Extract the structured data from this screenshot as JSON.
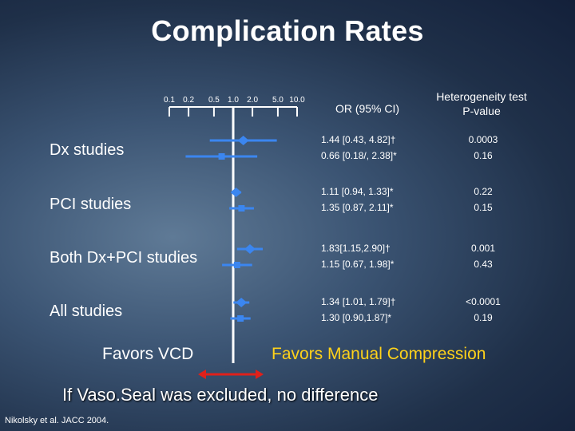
{
  "title": "Complication Rates",
  "headers": {
    "or": "OR (95% CI)",
    "p_line1": "Heterogeneity test",
    "p_line2": "P-value"
  },
  "favors_left": "Favors VCD",
  "favors_right": "Favors Manual Compression",
  "note": "If Vaso.Seal was excluded, no difference",
  "citation": "Nikolsky et al. JACC 2004.",
  "colors": {
    "marker": "#3b86f0",
    "ref_line": "#ffffff",
    "favors_right": "#ffd21a",
    "arrow": "#e0201a"
  },
  "chart_data": {
    "type": "forest",
    "x_scale": "log",
    "x_ticks": [
      0.1,
      0.2,
      0.5,
      1.0,
      2.0,
      5.0,
      10.0
    ],
    "x_tick_labels": [
      "0.1",
      "0.2",
      "0.5",
      "1.0",
      "2.0",
      "5.0",
      "10.0"
    ],
    "reference_line": 1.0,
    "groups": [
      {
        "label": "Dx studies",
        "rows": [
          {
            "marker": "diamond",
            "or": 1.44,
            "lo": 0.43,
            "hi": 4.82,
            "ci_text": "1.44 [0.43, 4.82]†",
            "p": "0.0003"
          },
          {
            "marker": "square",
            "or": 0.66,
            "lo": 0.18,
            "hi": 2.38,
            "ci_text": "0.66 [0.18/, 2.38]*",
            "p": "0.16"
          }
        ]
      },
      {
        "label": "PCI studies",
        "rows": [
          {
            "marker": "diamond",
            "or": 1.11,
            "lo": 0.94,
            "hi": 1.33,
            "ci_text": "1.11 [0.94, 1.33]*",
            "p": "0.22"
          },
          {
            "marker": "square",
            "or": 1.35,
            "lo": 0.87,
            "hi": 2.11,
            "ci_text": "1.35 [0.87, 2.11]*",
            "p": "0.15"
          }
        ]
      },
      {
        "label": "Both Dx+PCI studies",
        "rows": [
          {
            "marker": "diamond",
            "or": 1.83,
            "lo": 1.15,
            "hi": 2.9,
            "ci_text": "1.83[1.15,2.90]†",
            "p": "0.001"
          },
          {
            "marker": "square",
            "or": 1.15,
            "lo": 0.67,
            "hi": 1.98,
            "ci_text": "1.15 [0.67, 1.98]*",
            "p": "0.43"
          }
        ]
      },
      {
        "label": "All studies",
        "rows": [
          {
            "marker": "diamond",
            "or": 1.34,
            "lo": 1.01,
            "hi": 1.79,
            "ci_text": "1.34 [1.01, 1.79]†",
            "p": "<0.0001"
          },
          {
            "marker": "square",
            "or": 1.3,
            "lo": 0.9,
            "hi": 1.87,
            "ci_text": "1.30 [0.90,1.87]*",
            "p": "0.19"
          }
        ]
      }
    ]
  }
}
